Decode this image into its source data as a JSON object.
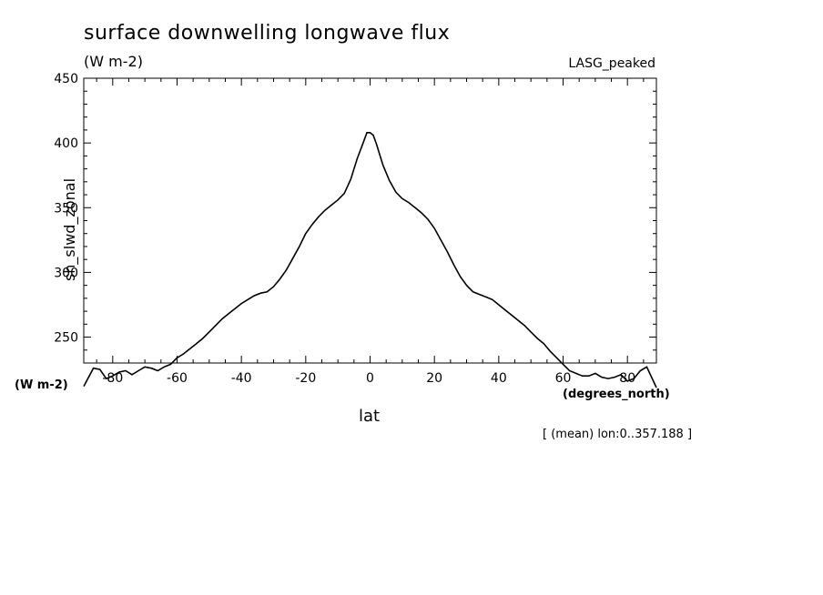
{
  "chart_data": {
    "type": "line",
    "title": "surface downwelling longwave flux",
    "units": "(W m-2)",
    "source_label": "LASG_peaked",
    "ylabel": "sh_slwd_zonal",
    "yunit": "(W m-2)",
    "xlabel": "lat",
    "xunit": "(degrees_north)",
    "note": "[ (mean) lon:0..357.188 ]",
    "xlim": [
      -89,
      89
    ],
    "ylim": [
      230,
      450
    ],
    "x_ticks": [
      -80,
      -60,
      -40,
      -20,
      0,
      20,
      40,
      60,
      80
    ],
    "x_tick_labels": [
      "-80",
      "-60",
      "-40",
      "-20",
      "0",
      "20",
      "40",
      "60",
      "80"
    ],
    "y_ticks": [
      250,
      300,
      350,
      400,
      450
    ],
    "y_tick_labels": [
      "250",
      "300",
      "350",
      "400",
      "450"
    ],
    "grid": false,
    "series": [
      {
        "x": [
          -89,
          -86,
          -84,
          -82,
          -80,
          -78,
          -76,
          -74,
          -72,
          -70,
          -68,
          -66,
          -64,
          -62,
          -60,
          -58,
          -56,
          -54,
          -52,
          -50,
          -48,
          -46,
          -44,
          -42,
          -40,
          -38,
          -36,
          -34,
          -32,
          -30,
          -28,
          -26,
          -24,
          -22,
          -20,
          -18,
          -16,
          -14,
          -12,
          -10,
          -8,
          -6,
          -4,
          -2,
          -1,
          0,
          1,
          2,
          4,
          6,
          8,
          10,
          12,
          14,
          16,
          18,
          20,
          22,
          24,
          26,
          28,
          30,
          32,
          34,
          36,
          38,
          40,
          42,
          44,
          46,
          48,
          50,
          52,
          54,
          56,
          58,
          60,
          62,
          64,
          66,
          68,
          70,
          72,
          74,
          76,
          78,
          80,
          82,
          84,
          86,
          89
        ],
        "y": [
          212,
          226,
          225,
          218,
          220,
          223,
          224,
          221,
          224,
          227,
          226,
          224,
          227,
          229,
          234,
          237,
          241,
          245,
          249,
          254,
          259,
          264,
          268,
          272,
          276,
          279,
          282,
          284,
          285,
          289,
          295,
          302,
          311,
          320,
          330,
          337,
          343,
          348,
          352,
          356,
          361,
          372,
          388,
          401,
          408,
          408,
          406,
          399,
          383,
          371,
          362,
          357,
          354,
          350,
          346,
          341,
          334,
          325,
          316,
          306,
          297,
          290,
          285,
          283,
          281,
          279,
          275,
          271,
          267,
          263,
          259,
          254,
          249,
          245,
          239,
          234,
          229,
          224,
          222,
          220,
          220,
          222,
          219,
          218,
          219,
          221,
          216,
          218,
          224,
          227,
          211
        ]
      }
    ]
  }
}
